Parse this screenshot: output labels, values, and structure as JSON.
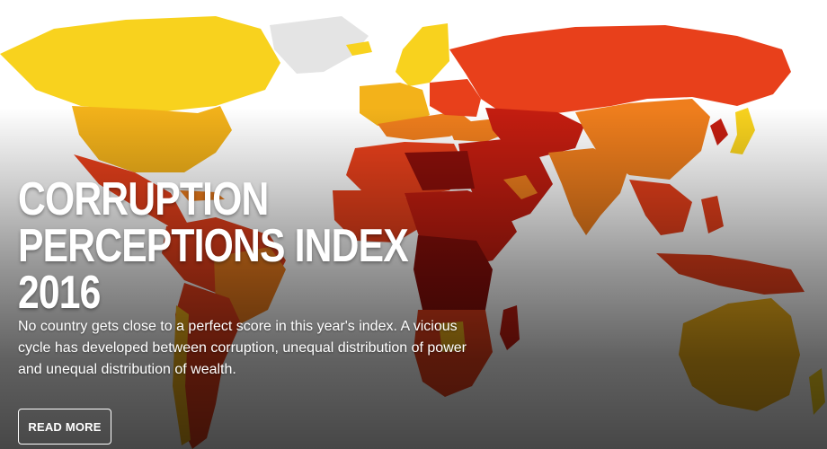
{
  "hero": {
    "title_lines": [
      "CORRUPTION",
      "PERCEPTIONS INDEX",
      "2016"
    ],
    "description": "No country gets close to a perfect score in this year's index. A vicious cycle has developed between corruption, unequal distribution of power and unequal distribution of wealth.",
    "button_label": "READ MORE"
  },
  "palette": {
    "very_clean": "#f8d21e",
    "clean": "#f3b21a",
    "moderate": "#ef7e1d",
    "corrupt": "#e8401b",
    "very_corrupt": "#c41d10",
    "extreme": "#8c0f0a",
    "no_data": "#e4e4e4"
  }
}
